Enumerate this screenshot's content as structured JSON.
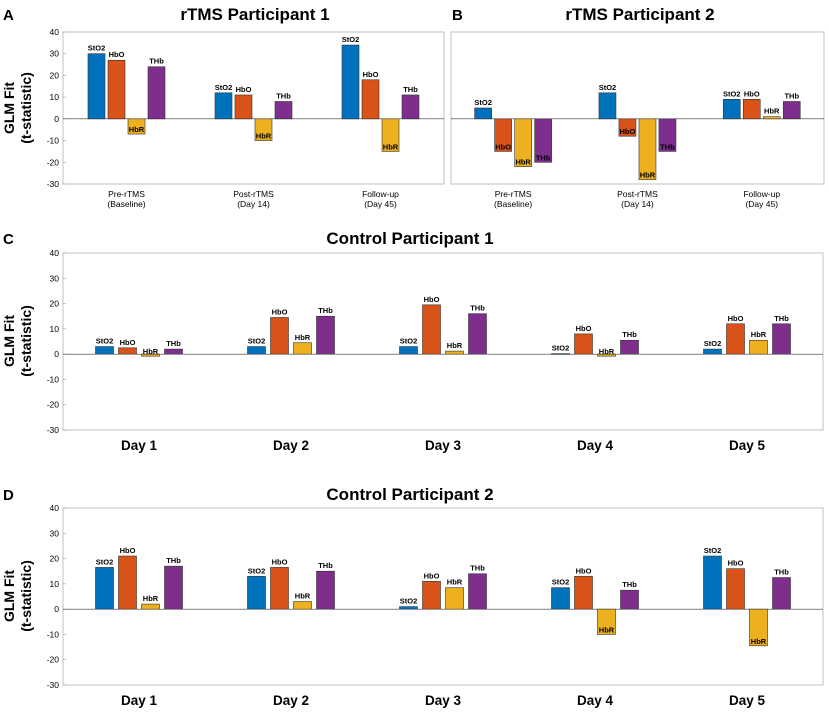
{
  "colors": {
    "StO2": "#0072BD",
    "HbO": "#D95319",
    "HbR": "#EDB120",
    "THb": "#7E2F8E"
  },
  "chart_data": [
    {
      "id": "A",
      "type": "bar",
      "panel_letter": "A",
      "title": "rTMS Participant 1",
      "ylabel_line1": "GLM Fit",
      "ylabel_line2": "(t-statistic)",
      "ylim": [
        -30,
        40
      ],
      "yticks": [
        -30,
        -20,
        -10,
        0,
        10,
        20,
        30,
        40
      ],
      "series_names": [
        "StO2",
        "HbO",
        "HbR",
        "THb"
      ],
      "groups": [
        {
          "label1": "Pre-rTMS",
          "label2": "(Baseline)",
          "values": [
            30,
            27,
            -7,
            24
          ]
        },
        {
          "label1": "Post-rTMS",
          "label2": "(Day 14)",
          "values": [
            12,
            11,
            -10,
            8
          ]
        },
        {
          "label1": "Follow-up",
          "label2": "(Day 45)",
          "values": [
            34,
            18,
            -15,
            11
          ]
        }
      ]
    },
    {
      "id": "B",
      "type": "bar",
      "panel_letter": "B",
      "title": "rTMS Participant 2",
      "ylim": [
        -30,
        40
      ],
      "series_names": [
        "StO2",
        "HbO",
        "HbR",
        "THb"
      ],
      "groups": [
        {
          "label1": "Pre-rTMS",
          "label2": "(Baseline)",
          "values": [
            5,
            -15,
            -22,
            -20
          ]
        },
        {
          "label1": "Post-rTMS",
          "label2": "(Day 14)",
          "values": [
            12,
            -8,
            -28,
            -15
          ]
        },
        {
          "label1": "Follow-up",
          "label2": "(Day 45)",
          "values": [
            9,
            9,
            1,
            8
          ]
        }
      ]
    },
    {
      "id": "C",
      "type": "bar",
      "panel_letter": "C",
      "title": "Control Participant 1",
      "ylabel_line1": "GLM Fit",
      "ylabel_line2": "(t-statistic)",
      "ylim": [
        -30,
        40
      ],
      "yticks": [
        -30,
        -20,
        -10,
        0,
        10,
        20,
        30,
        40
      ],
      "series_names": [
        "StO2",
        "HbO",
        "HbR",
        "THb"
      ],
      "groups": [
        {
          "label1": "Day 1",
          "values": [
            3,
            2.5,
            -0.8,
            2
          ]
        },
        {
          "label1": "Day 2",
          "values": [
            3,
            14.5,
            4.5,
            15
          ]
        },
        {
          "label1": "Day 3",
          "values": [
            3,
            19.5,
            1.2,
            16
          ]
        },
        {
          "label1": "Day 4",
          "values": [
            0.2,
            8,
            -0.8,
            5.5
          ]
        },
        {
          "label1": "Day 5",
          "values": [
            2,
            12,
            5.5,
            12
          ]
        }
      ]
    },
    {
      "id": "D",
      "type": "bar",
      "panel_letter": "D",
      "title": "Control Participant 2",
      "ylabel_line1": "GLM Fit",
      "ylabel_line2": "(t-statistic)",
      "ylim": [
        -30,
        40
      ],
      "yticks": [
        -30,
        -20,
        -10,
        0,
        10,
        20,
        30,
        40
      ],
      "series_names": [
        "StO2",
        "HbO",
        "HbR",
        "THb"
      ],
      "groups": [
        {
          "label1": "Day 1",
          "values": [
            16.5,
            21,
            2,
            17
          ]
        },
        {
          "label1": "Day 2",
          "values": [
            13,
            16.5,
            3,
            15
          ]
        },
        {
          "label1": "Day 3",
          "values": [
            1,
            11,
            8.5,
            14
          ]
        },
        {
          "label1": "Day 4",
          "values": [
            8.5,
            13,
            -10,
            7.5
          ]
        },
        {
          "label1": "Day 5",
          "values": [
            21,
            16,
            -14.5,
            12.5
          ]
        }
      ]
    }
  ]
}
